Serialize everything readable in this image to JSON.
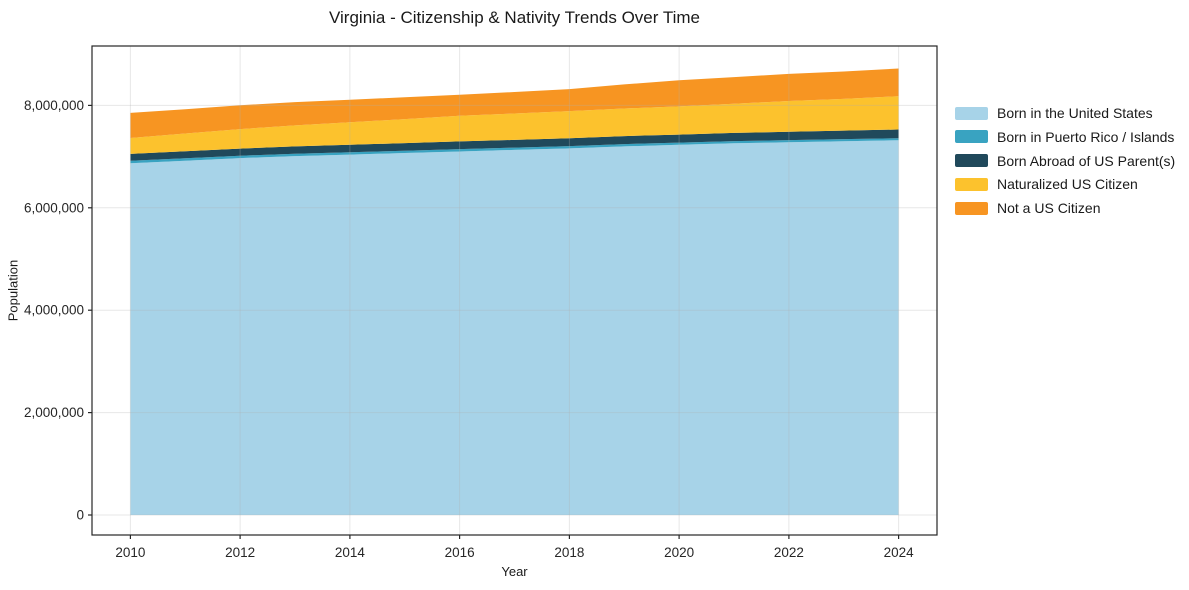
{
  "chart_data": {
    "type": "area",
    "stacked": true,
    "title": "Virginia - Citizenship & Nativity Trends Over Time",
    "xlabel": "Year",
    "ylabel": "Population",
    "x": [
      2010,
      2011,
      2012,
      2013,
      2014,
      2015,
      2016,
      2017,
      2018,
      2019,
      2020,
      2021,
      2022,
      2023,
      2024
    ],
    "series": [
      {
        "name": "Born in the United States",
        "color": "#a7d3e8",
        "values": [
          6870000,
          6920000,
          6970000,
          7010000,
          7040000,
          7070000,
          7100000,
          7130000,
          7160000,
          7200000,
          7230000,
          7260000,
          7280000,
          7300000,
          7320000
        ]
      },
      {
        "name": "Born in Puerto Rico / Islands",
        "color": "#39a3c1",
        "values": [
          48000,
          48000,
          47000,
          47000,
          46000,
          46000,
          46000,
          45000,
          45000,
          45000,
          44000,
          43000,
          42000,
          41000,
          40000
        ]
      },
      {
        "name": "Born Abroad of US Parent(s)",
        "color": "#20495b",
        "values": [
          135000,
          138000,
          140000,
          142000,
          145000,
          147000,
          150000,
          152000,
          154000,
          155000,
          156000,
          160000,
          163000,
          166000,
          170000
        ]
      },
      {
        "name": "Naturalized US Citizen",
        "color": "#fcc22d",
        "values": [
          310000,
          345000,
          380000,
          410000,
          440000,
          470000,
          500000,
          515000,
          530000,
          540000,
          550000,
          570000,
          600000,
          620000,
          650000
        ]
      },
      {
        "name": "Not a US Citizen",
        "color": "#f79522",
        "values": [
          490000,
          475000,
          465000,
          455000,
          440000,
          425000,
          410000,
          420000,
          430000,
          470000,
          510000,
          520000,
          530000,
          535000,
          540000
        ]
      }
    ],
    "xlim": [
      2009.3,
      2024.7
    ],
    "ylim": [
      -390000,
      9160000
    ],
    "xticks": [
      2010,
      2012,
      2014,
      2016,
      2018,
      2020,
      2022,
      2024
    ],
    "yticks": [
      0,
      2000000,
      4000000,
      6000000,
      8000000
    ],
    "grid": true,
    "grid_color": "#b0b0b0",
    "spine_color": "#262626",
    "legend_position": "right"
  }
}
